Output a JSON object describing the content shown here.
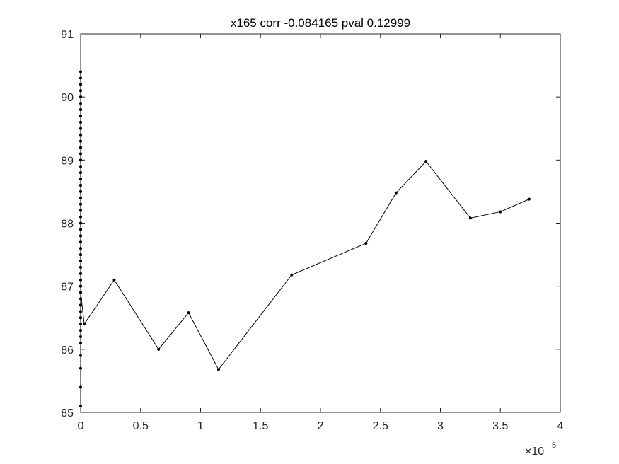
{
  "chart_data": {
    "type": "line",
    "title": "x165 corr -0.084165 pval 0.12999",
    "xlabel": "",
    "ylabel": "",
    "xlim": [
      0,
      400000
    ],
    "ylim": [
      85,
      91
    ],
    "x_exponent_label": {
      "base": "×10",
      "exp": "5"
    },
    "grid": false,
    "x_ticks": [
      0,
      50000,
      100000,
      150000,
      200000,
      250000,
      300000,
      350000,
      400000
    ],
    "x_tick_labels": [
      "0",
      "0.5",
      "1",
      "1.5",
      "2",
      "2.5",
      "3",
      "3.5",
      "4"
    ],
    "y_ticks": [
      85,
      86,
      87,
      88,
      89,
      90,
      91
    ],
    "y_tick_labels": [
      "85",
      "86",
      "87",
      "88",
      "89",
      "90",
      "91"
    ],
    "series": [
      {
        "color": "#000000",
        "marker": "dot",
        "x": [
          0,
          0,
          0,
          0,
          0,
          0,
          0,
          0,
          0,
          0,
          0,
          0,
          0,
          0,
          0,
          0,
          0,
          0,
          0,
          0,
          0,
          0,
          0,
          0,
          0,
          0,
          0,
          0,
          0,
          0,
          0,
          0,
          0,
          0,
          0,
          0,
          0,
          0,
          0,
          0,
          0,
          0,
          0,
          0,
          0,
          0,
          0,
          0,
          0,
          0,
          0,
          0,
          0,
          0,
          0,
          0,
          0,
          0,
          0,
          0,
          0,
          0,
          0,
          0,
          0,
          0,
          0,
          0,
          0,
          0,
          0,
          0,
          0,
          0,
          0,
          0,
          0,
          0,
          0,
          0,
          0,
          0,
          0,
          0,
          0,
          0,
          0,
          0,
          0,
          0,
          0,
          0,
          0,
          0,
          0,
          0,
          0,
          0,
          0,
          0,
          3000,
          28000,
          65000,
          90000,
          115000,
          176000,
          238000,
          263000,
          288000,
          325000,
          350000,
          374000
        ],
        "y": [
          85.1,
          85.4,
          85.7,
          85.9,
          86.1,
          86.3,
          86.5,
          86.7,
          86.9,
          87.0,
          87.2,
          87.4,
          87.6,
          87.8,
          88.0,
          88.2,
          88.4,
          88.6,
          88.8,
          89.0,
          89.2,
          89.4,
          89.6,
          89.8,
          90.0,
          90.2,
          90.4,
          90.3,
          90.1,
          89.9,
          89.7,
          89.5,
          89.3,
          89.1,
          88.9,
          88.7,
          88.5,
          88.3,
          88.1,
          87.9,
          87.7,
          87.5,
          87.3,
          87.1,
          86.9,
          86.7,
          86.5,
          86.4,
          86.6,
          86.8,
          87.0,
          87.2,
          87.4,
          87.6,
          87.8,
          88.0,
          88.2,
          88.4,
          88.6,
          88.8,
          89.0,
          89.2,
          89.4,
          89.6,
          89.8,
          90.0,
          90.2,
          90.1,
          89.9,
          89.7,
          89.5,
          89.3,
          89.1,
          88.9,
          88.7,
          88.5,
          88.3,
          88.1,
          87.9,
          87.7,
          87.5,
          87.3,
          87.1,
          86.9,
          86.7,
          86.5,
          86.3,
          86.2,
          86.6,
          87.0,
          87.4,
          87.8,
          88.2,
          88.6,
          89.0,
          89.4,
          89.8,
          90.2,
          87.5,
          86.9,
          86.4,
          87.1,
          86.0,
          86.58,
          85.68,
          87.18,
          87.68,
          88.48,
          88.98,
          88.08,
          88.18,
          88.38
        ]
      }
    ]
  }
}
